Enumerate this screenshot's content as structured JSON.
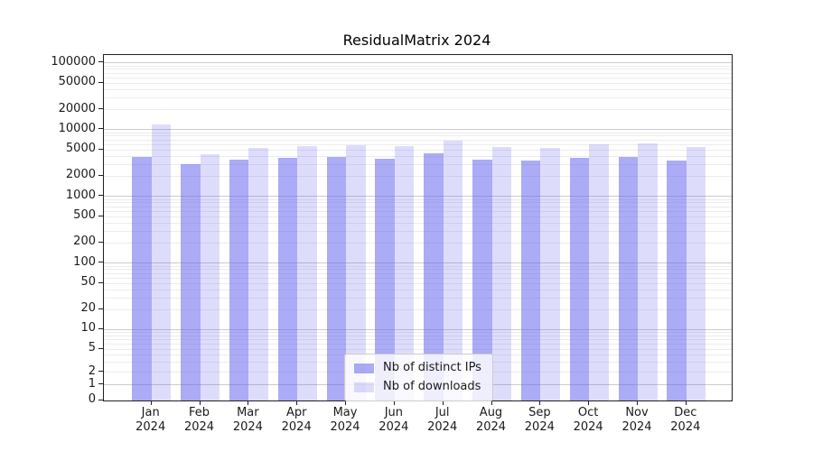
{
  "title": "ResidualMatrix 2024",
  "chart_data": {
    "type": "bar",
    "title": "ResidualMatrix 2024",
    "xlabel": "",
    "ylabel": "",
    "yscale": "asinh-symlog",
    "ylim": [
      0,
      125000
    ],
    "grid": "both-horizontal",
    "legend_position": "lower center",
    "background_color": "#ffffff",
    "categories": [
      {
        "month": "Jan",
        "year": "2024"
      },
      {
        "month": "Feb",
        "year": "2024"
      },
      {
        "month": "Mar",
        "year": "2024"
      },
      {
        "month": "Apr",
        "year": "2024"
      },
      {
        "month": "May",
        "year": "2024"
      },
      {
        "month": "Jun",
        "year": "2024"
      },
      {
        "month": "Jul",
        "year": "2024"
      },
      {
        "month": "Aug",
        "year": "2024"
      },
      {
        "month": "Sep",
        "year": "2024"
      },
      {
        "month": "Oct",
        "year": "2024"
      },
      {
        "month": "Nov",
        "year": "2024"
      },
      {
        "month": "Dec",
        "year": "2024"
      }
    ],
    "series": [
      {
        "name": "Nb of distinct IPs",
        "color": "#6666EE8C",
        "values": [
          3900,
          3050,
          3550,
          3750,
          3950,
          3700,
          4400,
          3550,
          3450,
          3800,
          3950,
          3450
        ]
      },
      {
        "name": "Nb of downloads",
        "color": "#6666EE38",
        "values": [
          12000,
          4350,
          5400,
          5650,
          5900,
          5750,
          6900,
          5450,
          5300,
          6100,
          6250,
          5450
        ]
      }
    ],
    "y_ticks": [
      100000,
      50000,
      20000,
      10000,
      5000,
      2000,
      1000,
      500,
      200,
      100,
      50,
      20,
      10,
      5,
      2,
      1,
      0
    ]
  }
}
